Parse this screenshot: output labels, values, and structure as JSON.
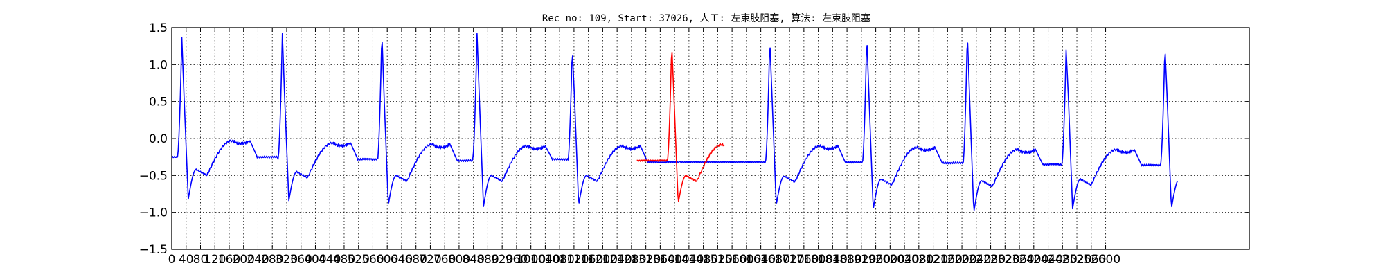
{
  "chart_data": {
    "type": "line",
    "title": "Rec_no: 109, Start: 37026, 人工: 左束肢阻塞, 算法: 左束肢阻塞",
    "xlabel": "",
    "ylabel": "",
    "xlim": [
      0,
      3000
    ],
    "ylim": [
      -1.5,
      1.5
    ],
    "grid": true,
    "yticks": [
      -1.5,
      -1.0,
      -0.5,
      0.0,
      0.5,
      1.0,
      1.5
    ],
    "ytick_labels": [
      "−1.5",
      "−1.0",
      "−0.5",
      "0.0",
      "0.5",
      "1.0",
      "1.5"
    ],
    "xticks": [
      0,
      40,
      80,
      120,
      160,
      200,
      240,
      280,
      320,
      360,
      400,
      440,
      480,
      520,
      560,
      600,
      640,
      680,
      720,
      760,
      800,
      840,
      880,
      920,
      960,
      1000,
      1040,
      1080,
      1120,
      1160,
      1200,
      1240,
      1280,
      1320,
      1360,
      1400,
      1440,
      1480,
      1520,
      1560,
      1600,
      1640,
      1680,
      1720,
      1760,
      1800,
      1840,
      1880,
      1920,
      1960,
      2000,
      2040,
      2080,
      2120,
      2160,
      2200,
      2240,
      2280,
      2320,
      2360,
      2400,
      2440,
      2480,
      2520,
      2560,
      2600
    ],
    "xtick_labels": [
      "0",
      "40",
      "80",
      "120",
      "160",
      "200",
      "240",
      "280",
      "320",
      "360",
      "400",
      "440",
      "480",
      "520",
      "560",
      "600",
      "640",
      "680",
      "720",
      "760",
      "800",
      "840",
      "880",
      "920",
      "960",
      "1000",
      "1040",
      "1080",
      "1120",
      "1160",
      "1200",
      "1240",
      "1280",
      "1320",
      "1360",
      "1400",
      "1440",
      "1480",
      "1520",
      "1560",
      "1600",
      "1640",
      "1680",
      "1720",
      "1760",
      "1800",
      "1840",
      "1880",
      "1920",
      "1960",
      "2000",
      "2040",
      "2080",
      "2120",
      "2160",
      "2200",
      "2240",
      "2280",
      "2320",
      "2360",
      "2400",
      "2440",
      "2480",
      "2520",
      "2560",
      "2600"
    ],
    "series": [
      {
        "color": "#0000ff",
        "beats": [
          {
            "r": 28,
            "peak": 1.37,
            "trough": -0.82,
            "s_base": -0.47,
            "t_amp": -0.03,
            "pre": -0.25
          },
          {
            "r": 308,
            "peak": 1.42,
            "trough": -0.84,
            "s_base": -0.5,
            "t_amp": -0.06,
            "pre": -0.28
          },
          {
            "r": 585,
            "peak": 1.44,
            "trough": -0.9,
            "s_base": -0.55,
            "t_amp": -0.08,
            "pre": -0.3
          },
          {
            "r": 850,
            "peak": 1.42,
            "trough": -0.92,
            "s_base": -0.55,
            "t_amp": -0.1,
            "pre": -0.28
          },
          {
            "r": 1115,
            "peak": 1.22,
            "trough": -0.9,
            "s_base": -0.55,
            "t_amp": -0.1,
            "pre": -0.32
          },
          {
            "r": 1665,
            "peak": 1.35,
            "trough": -0.9,
            "s_base": -0.56,
            "t_amp": -0.1,
            "pre": -0.32
          },
          {
            "r": 1935,
            "peak": 1.39,
            "trough": -0.96,
            "s_base": -0.6,
            "t_amp": -0.12,
            "pre": -0.33
          },
          {
            "r": 2215,
            "peak": 1.43,
            "trough": -1.0,
            "s_base": -0.62,
            "t_amp": -0.15,
            "pre": -0.35
          },
          {
            "r": 2490,
            "peak": 1.2,
            "trough": -0.95,
            "s_base": -0.6,
            "t_amp": -0.15,
            "pre": -0.36
          },
          {
            "r": 2765,
            "peak": 1.25,
            "trough": -0.95,
            "s_base": -0.6,
            "t_amp": -0.13,
            "pre": -0.35
          }
        ],
        "x_start": 0,
        "x_end": 2800
      },
      {
        "color": "#ff0000",
        "beats": [
          {
            "r": 1392,
            "peak": 1.28,
            "trough": -0.88,
            "s_base": -0.55,
            "t_amp": -0.08,
            "pre": -0.3
          }
        ],
        "x_start": 1295,
        "x_end": 1540
      }
    ]
  }
}
